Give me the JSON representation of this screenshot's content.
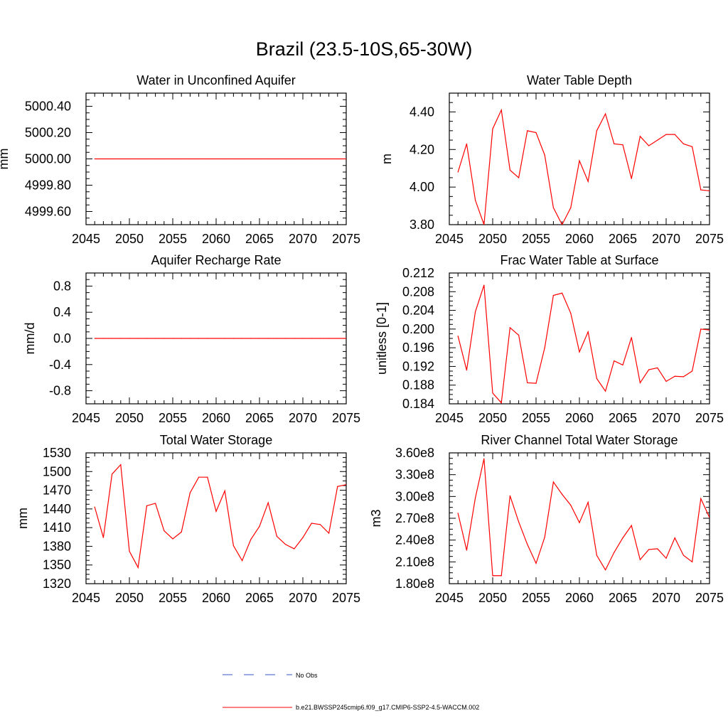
{
  "title": "Brazil (23.5-10S,65-30W)",
  "legend": {
    "placement": "bottom-center",
    "entries": [
      {
        "label": "No Obs",
        "color": "#3355cc",
        "style": "dashed"
      },
      {
        "label": "b.e21.BWSSP245cmip6.f09_g17.CMIP6-SSP2-4.5-WACCM.002",
        "color": "#ff0000",
        "style": "solid"
      }
    ]
  },
  "chart_data": [
    {
      "type": "line",
      "title": "Water in Unconfined Aquifer",
      "xlabel": "",
      "ylabel": "mm",
      "xlim": [
        2045,
        2075
      ],
      "ylim": [
        4999.5,
        5000.5
      ],
      "xticks": [
        2045,
        2050,
        2055,
        2060,
        2065,
        2070,
        2075
      ],
      "yticks": [
        4999.6,
        4999.8,
        5000.0,
        5000.2,
        5000.4
      ],
      "ytick_labels": [
        "4999.60",
        "4999.80",
        "5000.00",
        "5000.20",
        "5000.40"
      ],
      "grid": false,
      "series": [
        {
          "color": "#ff0000",
          "x": [
            2046,
            2047,
            2048,
            2049,
            2050,
            2051,
            2052,
            2053,
            2054,
            2055,
            2056,
            2057,
            2058,
            2059,
            2060,
            2061,
            2062,
            2063,
            2064,
            2065,
            2066,
            2067,
            2068,
            2069,
            2070,
            2071,
            2072,
            2073,
            2074,
            2075
          ],
          "values": [
            5000,
            5000,
            5000,
            5000,
            5000,
            5000,
            5000,
            5000,
            5000,
            5000,
            5000,
            5000,
            5000,
            5000,
            5000,
            5000,
            5000,
            5000,
            5000,
            5000,
            5000,
            5000,
            5000,
            5000,
            5000,
            5000,
            5000,
            5000,
            5000,
            5000
          ]
        }
      ]
    },
    {
      "type": "line",
      "title": "Water Table Depth",
      "xlabel": "",
      "ylabel": "m",
      "xlim": [
        2045,
        2075
      ],
      "ylim": [
        3.8,
        4.5
      ],
      "xticks": [
        2045,
        2050,
        2055,
        2060,
        2065,
        2070,
        2075
      ],
      "yticks": [
        3.8,
        4.0,
        4.2,
        4.4
      ],
      "ytick_labels": [
        "3.80",
        "4.00",
        "4.20",
        "4.40"
      ],
      "grid": false,
      "series": [
        {
          "color": "#ff0000",
          "x": [
            2046,
            2047,
            2048,
            2049,
            2050,
            2051,
            2052,
            2053,
            2054,
            2055,
            2056,
            2057,
            2058,
            2059,
            2060,
            2061,
            2062,
            2063,
            2064,
            2065,
            2066,
            2067,
            2068,
            2069,
            2070,
            2071,
            2072,
            2073,
            2074,
            2075
          ],
          "values": [
            4.08,
            4.23,
            3.93,
            3.8,
            4.31,
            4.41,
            4.09,
            4.05,
            4.3,
            4.29,
            4.17,
            3.89,
            3.8,
            3.89,
            4.14,
            4.03,
            4.3,
            4.39,
            4.23,
            4.225,
            4.045,
            4.27,
            4.22,
            4.25,
            4.28,
            4.28,
            4.23,
            4.215,
            3.985,
            3.98
          ]
        }
      ]
    },
    {
      "type": "line",
      "title": "Aquifer Recharge Rate",
      "xlabel": "",
      "ylabel": "mm/d",
      "xlim": [
        2045,
        2075
      ],
      "ylim": [
        -1.0,
        1.0
      ],
      "xticks": [
        2045,
        2050,
        2055,
        2060,
        2065,
        2070,
        2075
      ],
      "yticks": [
        -0.8,
        -0.4,
        0.0,
        0.4,
        0.8
      ],
      "ytick_labels": [
        "-0.8",
        "-0.4",
        "0.0",
        "0.4",
        "0.8"
      ],
      "grid": false,
      "series": [
        {
          "color": "#ff0000",
          "x": [
            2046,
            2047,
            2048,
            2049,
            2050,
            2051,
            2052,
            2053,
            2054,
            2055,
            2056,
            2057,
            2058,
            2059,
            2060,
            2061,
            2062,
            2063,
            2064,
            2065,
            2066,
            2067,
            2068,
            2069,
            2070,
            2071,
            2072,
            2073,
            2074,
            2075
          ],
          "values": [
            0,
            0,
            0,
            0,
            0,
            0,
            0,
            0,
            0,
            0,
            0,
            0,
            0,
            0,
            0,
            0,
            0,
            0,
            0,
            0,
            0,
            0,
            0,
            0,
            0,
            0,
            0,
            0,
            0,
            0
          ]
        }
      ]
    },
    {
      "type": "line",
      "title": "Frac Water Table at Surface",
      "xlabel": "",
      "ylabel": "unitless [0-1]",
      "xlim": [
        2045,
        2075
      ],
      "ylim": [
        0.184,
        0.212
      ],
      "xticks": [
        2045,
        2050,
        2055,
        2060,
        2065,
        2070,
        2075
      ],
      "yticks": [
        0.184,
        0.188,
        0.192,
        0.196,
        0.2,
        0.204,
        0.208,
        0.212
      ],
      "ytick_labels": [
        "0.184",
        "0.188",
        "0.192",
        "0.196",
        "0.200",
        "0.204",
        "0.208",
        "0.212"
      ],
      "grid": false,
      "series": [
        {
          "color": "#ff0000",
          "x": [
            2046,
            2047,
            2048,
            2049,
            2050,
            2051,
            2052,
            2053,
            2054,
            2055,
            2056,
            2057,
            2058,
            2059,
            2060,
            2061,
            2062,
            2063,
            2064,
            2065,
            2066,
            2067,
            2068,
            2069,
            2070,
            2071,
            2072,
            2073,
            2074,
            2075
          ],
          "values": [
            0.1985,
            0.1912,
            0.2037,
            0.2094,
            0.1863,
            0.1842,
            0.2003,
            0.1987,
            0.1885,
            0.1884,
            0.196,
            0.2072,
            0.2077,
            0.2034,
            0.1951,
            0.1994,
            0.1894,
            0.1867,
            0.1932,
            0.1923,
            0.1982,
            0.1885,
            0.1913,
            0.1917,
            0.1888,
            0.1899,
            0.1898,
            0.191,
            0.2,
            0.1998
          ]
        }
      ]
    },
    {
      "type": "line",
      "title": "Total Water Storage",
      "xlabel": "",
      "ylabel": "mm",
      "xlim": [
        2045,
        2075
      ],
      "ylim": [
        1320,
        1530
      ],
      "xticks": [
        2045,
        2050,
        2055,
        2060,
        2065,
        2070,
        2075
      ],
      "yticks": [
        1320,
        1350,
        1380,
        1410,
        1440,
        1470,
        1500,
        1530
      ],
      "ytick_labels": [
        "1320",
        "1350",
        "1380",
        "1410",
        "1440",
        "1470",
        "1500",
        "1530"
      ],
      "grid": false,
      "series": [
        {
          "color": "#ff0000",
          "x": [
            2046,
            2047,
            2048,
            2049,
            2050,
            2051,
            2052,
            2053,
            2054,
            2055,
            2056,
            2057,
            2058,
            2059,
            2060,
            2061,
            2062,
            2063,
            2064,
            2065,
            2066,
            2067,
            2068,
            2069,
            2070,
            2071,
            2072,
            2073,
            2074,
            2075
          ],
          "values": [
            1443,
            1394,
            1496,
            1511,
            1372,
            1346,
            1445,
            1449,
            1405,
            1392,
            1403,
            1466,
            1491,
            1491,
            1436,
            1469,
            1381,
            1357,
            1391,
            1412,
            1450,
            1396,
            1383,
            1376,
            1394,
            1417,
            1415,
            1401,
            1476,
            1479
          ]
        }
      ]
    },
    {
      "type": "line",
      "title": "River Channel Total Water Storage",
      "xlabel": "",
      "ylabel": "m3",
      "xlim": [
        2045,
        2075
      ],
      "ylim": [
        180000000,
        360000000
      ],
      "xticks": [
        2045,
        2050,
        2055,
        2060,
        2065,
        2070,
        2075
      ],
      "yticks": [
        180000000,
        210000000,
        240000000,
        270000000,
        300000000,
        330000000,
        360000000
      ],
      "ytick_labels": [
        "1.80e8",
        "2.10e8",
        "2.40e8",
        "2.70e8",
        "3.00e8",
        "3.30e8",
        "3.60e8"
      ],
      "grid": false,
      "series": [
        {
          "color": "#ff0000",
          "x": [
            2046,
            2047,
            2048,
            2049,
            2050,
            2051,
            2052,
            2053,
            2054,
            2055,
            2056,
            2057,
            2058,
            2059,
            2060,
            2061,
            2062,
            2063,
            2064,
            2065,
            2066,
            2067,
            2068,
            2069,
            2070,
            2071,
            2072,
            2073,
            2074,
            2075
          ],
          "values": [
            277000000,
            226000000,
            298000000,
            352000000,
            191000000,
            191000000,
            301000000,
            265000000,
            234000000,
            208000000,
            244000000,
            320000000,
            303000000,
            288000000,
            264000000,
            292000000,
            219000000,
            199000000,
            223000000,
            243000000,
            260000000,
            213000000,
            227000000,
            228000000,
            215000000,
            243000000,
            219000000,
            210000000,
            297000000,
            271000000
          ]
        }
      ]
    }
  ]
}
